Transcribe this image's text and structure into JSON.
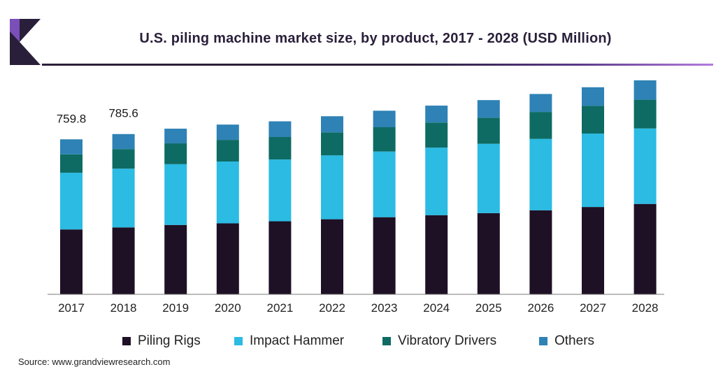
{
  "chart_data": {
    "type": "bar",
    "stacked": true,
    "title": "U.S. piling machine market size, by product, 2017 - 2028 (USD Million)",
    "categories": [
      "2017",
      "2018",
      "2019",
      "2020",
      "2021",
      "2022",
      "2023",
      "2024",
      "2025",
      "2026",
      "2027",
      "2028"
    ],
    "series": [
      {
        "name": "Piling Rigs",
        "color": "#1e1025",
        "values": [
          318,
          328,
          340,
          348,
          358,
          368,
          378,
          388,
          398,
          412,
          428,
          443
        ]
      },
      {
        "name": "Impact Hammer",
        "color": "#2bbbe3",
        "values": [
          278,
          288,
          298,
          303,
          303,
          313,
          322,
          331,
          340,
          350,
          360,
          370
        ]
      },
      {
        "name": "Vibratory Drivers",
        "color": "#0d6b63",
        "values": [
          90,
          96,
          102,
          106,
          110,
          113,
          119,
          123,
          128,
          132,
          136,
          141
        ]
      },
      {
        "name": "Others",
        "color": "#2e82b5",
        "values": [
          73.8,
          73.6,
          72,
          75,
          77,
          79,
          81,
          83,
          86,
          88,
          91,
          95
        ]
      }
    ],
    "data_labels": [
      {
        "category": "2017",
        "text": "759.8"
      },
      {
        "category": "2018",
        "text": "785.6"
      }
    ],
    "ylim": [
      0,
      1100
    ],
    "grid": false,
    "legend_position": "bottom"
  },
  "source": "Source: www.grandviewresearch.com"
}
